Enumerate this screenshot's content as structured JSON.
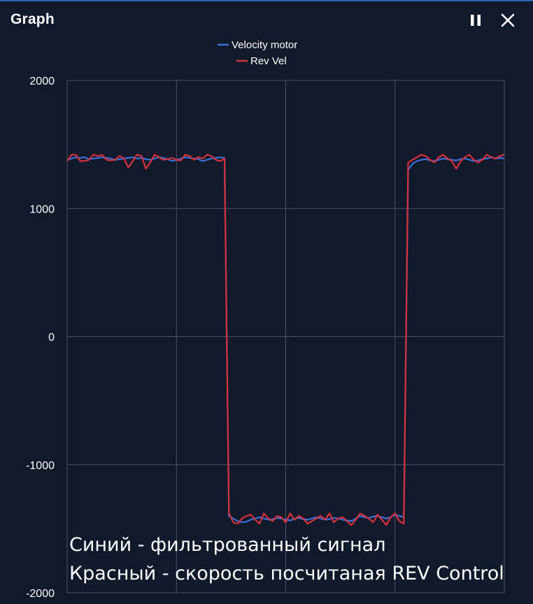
{
  "window": {
    "title": "Graph",
    "pause_icon": "pause-icon",
    "close_icon": "close-icon"
  },
  "chart_data": {
    "type": "line",
    "title": "",
    "xlabel": "",
    "ylabel": "",
    "ylim": [
      -2000,
      2000
    ],
    "yticks": [
      2000,
      1000,
      0,
      -1000,
      -2000
    ],
    "grid": true,
    "legend_position": "top-center",
    "x": [
      0,
      1,
      2,
      3,
      4,
      5,
      6,
      7,
      8,
      9,
      10,
      11,
      12,
      13,
      14,
      15,
      16,
      17,
      18,
      19,
      20,
      21,
      22,
      23,
      24,
      25,
      26,
      27,
      28,
      29,
      30,
      31,
      32,
      33,
      34,
      35,
      36,
      37,
      38,
      39,
      40,
      41,
      42,
      43,
      44,
      45,
      46,
      47,
      48,
      49,
      50,
      51,
      52,
      53,
      54,
      55,
      56,
      57,
      58,
      59,
      60,
      61,
      62,
      63,
      64,
      65,
      66,
      67,
      68,
      69,
      70,
      71,
      72,
      73,
      74,
      75,
      76,
      77,
      78,
      79,
      80,
      81,
      82,
      83,
      84,
      85,
      86,
      87,
      88,
      89,
      90,
      91,
      92,
      93,
      94,
      95,
      96,
      97,
      98,
      99,
      100
    ],
    "series": [
      {
        "name": "Velocity motor",
        "color": "#3b6fd9",
        "values": [
          1380,
          1390,
          1400,
          1395,
          1400,
          1385,
          1390,
          1395,
          1400,
          1395,
          1390,
          1380,
          1385,
          1390,
          1395,
          1400,
          1390,
          1395,
          1385,
          1380,
          1390,
          1400,
          1395,
          1385,
          1370,
          1380,
          1390,
          1400,
          1395,
          1390,
          1385,
          1370,
          1380,
          1390,
          1395,
          1400,
          1395,
          -1400,
          -1420,
          -1440,
          -1450,
          -1445,
          -1430,
          -1420,
          -1410,
          -1420,
          -1430,
          -1425,
          -1415,
          -1420,
          -1430,
          -1435,
          -1420,
          -1415,
          -1425,
          -1430,
          -1420,
          -1410,
          -1420,
          -1430,
          -1425,
          -1415,
          -1420,
          -1430,
          -1435,
          -1440,
          -1420,
          -1400,
          -1410,
          -1415,
          -1405,
          -1400,
          -1410,
          -1420,
          -1410,
          -1390,
          -1400,
          -1410,
          1300,
          1350,
          1370,
          1380,
          1385,
          1375,
          1370,
          1380,
          1390,
          1385,
          1380,
          1375,
          1385,
          1390,
          1380,
          1370,
          1375,
          1385,
          1390,
          1400,
          1390,
          1395,
          1390
        ],
        "description_values_note": ""
      },
      {
        "name": "Rev Vel",
        "color": "#d6303a",
        "values": [
          1370,
          1420,
          1420,
          1370,
          1370,
          1380,
          1420,
          1410,
          1420,
          1380,
          1375,
          1380,
          1410,
          1390,
          1320,
          1370,
          1420,
          1410,
          1310,
          1360,
          1420,
          1400,
          1380,
          1385,
          1395,
          1380,
          1375,
          1420,
          1410,
          1380,
          1400,
          1390,
          1420,
          1410,
          1380,
          1370,
          1390,
          -1380,
          -1450,
          -1460,
          -1420,
          -1400,
          -1390,
          -1430,
          -1460,
          -1380,
          -1420,
          -1440,
          -1400,
          -1410,
          -1450,
          -1380,
          -1430,
          -1400,
          -1420,
          -1460,
          -1440,
          -1420,
          -1400,
          -1430,
          -1380,
          -1450,
          -1420,
          -1410,
          -1440,
          -1470,
          -1430,
          -1380,
          -1400,
          -1420,
          -1450,
          -1390,
          -1430,
          -1470,
          -1410,
          -1380,
          -1440,
          -1460,
          1360,
          1380,
          1400,
          1420,
          1410,
          1380,
          1360,
          1400,
          1420,
          1390,
          1370,
          1310,
          1370,
          1400,
          1420,
          1380,
          1360,
          1380,
          1420,
          1400,
          1390,
          1410,
          1420
        ]
      }
    ]
  },
  "captions": {
    "line1": "Синий - фильтрованный сигнал",
    "line2": "Красный - скорость посчитаная REV Control"
  }
}
